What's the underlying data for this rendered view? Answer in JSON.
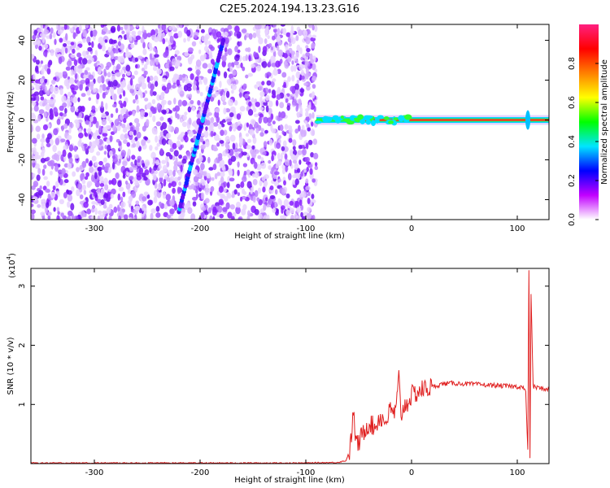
{
  "title": "C2E5.2024.194.13.23.G16",
  "chart_data": [
    {
      "type": "heatmap",
      "xlabel": "Height of straight line (km)",
      "ylabel": "Frequency (Hz)",
      "xlim": [
        -360,
        130
      ],
      "ylim": [
        -50,
        48
      ],
      "xticks": [
        -300,
        -200,
        -100,
        0,
        100
      ],
      "yticks": [
        -40,
        -20,
        0,
        20,
        40
      ],
      "colorbar": {
        "label": "Normalized spectral amplitude",
        "range": [
          0,
          1
        ],
        "ticks": [
          0.0,
          0.2,
          0.4,
          0.6,
          0.8
        ],
        "colors": [
          "#ffffff",
          "#c200ff",
          "#0000ff",
          "#00e5ff",
          "#00ff00",
          "#ffff00",
          "#ff8000",
          "#ff0000",
          "#ff2080"
        ]
      },
      "features": {
        "noise_region_x": [
          -360,
          -90
        ],
        "diagonal_streak": {
          "x": [
            -220,
            -178
          ],
          "y": [
            -46,
            40
          ]
        },
        "carrier_line": {
          "x": [
            -90,
            130
          ],
          "y": 0
        }
      }
    },
    {
      "type": "line",
      "xlabel": "Height of straight line (km)",
      "ylabel": "SNR (10 * v/v)",
      "y_multiplier": "(x10",
      "y_multiplier_exp": "4",
      "y_multiplier_close": ")",
      "xlim": [
        -360,
        130
      ],
      "ylim": [
        0,
        3.3
      ],
      "xticks": [
        -300,
        -200,
        -100,
        0,
        100
      ],
      "yticks": [
        1,
        2,
        3
      ],
      "series": [
        {
          "color": "#e02020",
          "x": [
            -360,
            -300,
            -200,
            -100,
            -70,
            -62,
            -58,
            -55,
            -52,
            -50,
            -45,
            -40,
            -35,
            -30,
            -25,
            -20,
            -15,
            -12,
            -10,
            -8,
            -5,
            0,
            5,
            10,
            20,
            30,
            40,
            50,
            60,
            70,
            80,
            90,
            100,
            105,
            108,
            110,
            111,
            112,
            113,
            115,
            120,
            130
          ],
          "y": [
            0.01,
            0.01,
            0.01,
            0.01,
            0.02,
            0.05,
            0.25,
            0.85,
            0.3,
            0.35,
            0.55,
            0.7,
            0.6,
            0.8,
            0.7,
            0.9,
            0.85,
            1.45,
            0.8,
            0.95,
            1.0,
            1.15,
            1.2,
            1.25,
            1.3,
            1.35,
            1.36,
            1.35,
            1.34,
            1.33,
            1.32,
            1.31,
            1.3,
            1.3,
            1.2,
            0.2,
            3.3,
            0.1,
            2.9,
            1.3,
            1.28,
            1.25
          ]
        }
      ]
    }
  ]
}
